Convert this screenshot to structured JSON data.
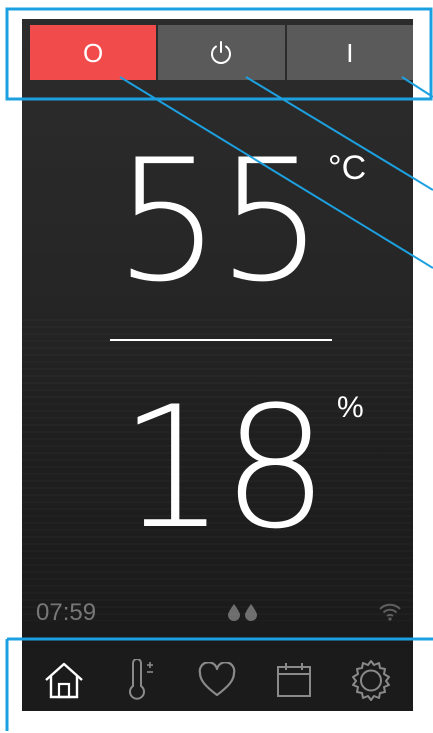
{
  "mode_bar": {
    "buttons": [
      {
        "id": "off",
        "glyph": "O",
        "active": true
      },
      {
        "id": "standby",
        "icon": "power-icon",
        "active": false
      },
      {
        "id": "on",
        "glyph": "I",
        "active": false
      }
    ]
  },
  "readings": {
    "temperature": {
      "value": "55",
      "unit": "°C"
    },
    "humidity": {
      "value": "18",
      "unit": "%"
    }
  },
  "status": {
    "time": "07:59",
    "water_icon": "water-drops-icon",
    "wifi_icon": "wifi-icon"
  },
  "nav": {
    "items": [
      {
        "id": "home",
        "icon": "home-icon",
        "active": true
      },
      {
        "id": "temperature-setting",
        "icon": "thermometer-plus-minus-icon",
        "active": false
      },
      {
        "id": "favorites",
        "icon": "heart-icon",
        "active": false
      },
      {
        "id": "calendar",
        "icon": "calendar-icon",
        "active": false
      },
      {
        "id": "settings",
        "icon": "gear-icon",
        "active": false
      }
    ]
  },
  "colors": {
    "accent_red": "#f14b4b",
    "button_gray": "#5a5a5a",
    "callout_blue": "#1da0e0",
    "panel_dark": "#262626",
    "status_gray": "#777777"
  }
}
